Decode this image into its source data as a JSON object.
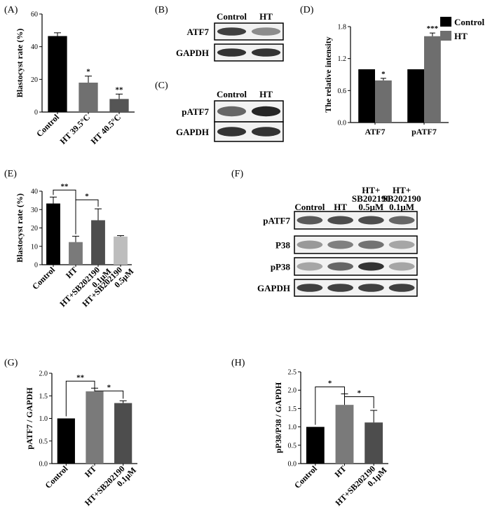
{
  "panel_labels": {
    "A": "(A)",
    "B": "(B)",
    "C": "(C)",
    "D": "(D)",
    "E": "(E)",
    "F": "(F)",
    "G": "(G)",
    "H": "(H)"
  },
  "chart_data": [
    {
      "id": "A",
      "type": "bar",
      "ylabel": "Blastocyst rate (%)",
      "ylim": [
        0,
        60
      ],
      "yticks": [
        0,
        20,
        40,
        60
      ],
      "categories": [
        "Control",
        "HT 39.5°C",
        "HT 40.5°C"
      ],
      "values": [
        46.5,
        18,
        8
      ],
      "errors": [
        2,
        4,
        3
      ],
      "colors": [
        "#000000",
        "#707070",
        "#555555"
      ],
      "annotations": [
        "",
        "*",
        "**"
      ],
      "rotate_labels": true
    },
    {
      "id": "D",
      "type": "bar",
      "ylabel": "The relative intensity",
      "ylim": [
        0,
        1.8
      ],
      "yticks": [
        "0.0",
        "0.6",
        "1.2",
        "1.8"
      ],
      "categories": [
        "ATF7",
        "pATF7"
      ],
      "series": [
        {
          "name": "Control",
          "values": [
            1.0,
            1.0
          ],
          "errors": [
            0,
            0
          ],
          "color": "#000000",
          "annotations": [
            "",
            ""
          ]
        },
        {
          "name": "HT",
          "values": [
            0.79,
            1.62
          ],
          "errors": [
            0.04,
            0.06
          ],
          "color": "#6e6e6e",
          "annotations": [
            "*",
            "***"
          ]
        }
      ],
      "legend": "top-right"
    },
    {
      "id": "E",
      "type": "bar",
      "ylabel": "Blastocyst rate (%)",
      "ylim": [
        0,
        40
      ],
      "yticks": [
        0,
        10,
        20,
        30,
        40
      ],
      "categories": [
        "Control",
        "HT",
        "HT+SB202190 0.1μM",
        "HT+SB202190 0.5μM"
      ],
      "category_lines": [
        [
          "Control"
        ],
        [
          "HT"
        ],
        [
          "HT+SB202190",
          "0.1μM"
        ],
        [
          "HT+SB202190",
          "0.5μM"
        ]
      ],
      "values": [
        33.3,
        12.3,
        24.2,
        15.3
      ],
      "errors": [
        3.5,
        3.2,
        6.2,
        0.5
      ],
      "colors": [
        "#000000",
        "#7a7a7a",
        "#4d4d4d",
        "#bdbdbd"
      ],
      "brackets": [
        {
          "from": 0,
          "to": 1,
          "label": "**"
        },
        {
          "from": 1,
          "to": 2,
          "label": "*"
        }
      ],
      "rotate_labels": true
    },
    {
      "id": "G",
      "type": "bar",
      "ylabel": "pATF7 / GAPDH",
      "ylim": [
        0,
        2.0
      ],
      "yticks": [
        "0.0",
        "0.5",
        "1.0",
        "1.5",
        "2.0"
      ],
      "categories": [
        "Control",
        "HT",
        "HT+SB202190 0.1μM"
      ],
      "category_lines": [
        [
          "Control"
        ],
        [
          "HT"
        ],
        [
          "HT+SB202190",
          "0.1μM"
        ]
      ],
      "values": [
        1.0,
        1.6,
        1.34
      ],
      "errors": [
        0,
        0.07,
        0.05
      ],
      "colors": [
        "#000000",
        "#7a7a7a",
        "#4d4d4d"
      ],
      "brackets": [
        {
          "from": 0,
          "to": 1,
          "label": "**"
        },
        {
          "from": 1,
          "to": 2,
          "label": "*"
        }
      ],
      "rotate_labels": true
    },
    {
      "id": "H",
      "type": "bar",
      "ylabel": "pP38/P38 / GAPDH",
      "ylim": [
        0,
        2.5
      ],
      "yticks": [
        "0.0",
        "0.5",
        "1.0",
        "1.5",
        "2.0",
        "2.5"
      ],
      "categories": [
        "Control",
        "HT",
        "HT+SB202190 0.1μM"
      ],
      "category_lines": [
        [
          "Control"
        ],
        [
          "HT"
        ],
        [
          "HT+SB202190",
          "0.1μM"
        ]
      ],
      "values": [
        1.0,
        1.6,
        1.12
      ],
      "errors": [
        0,
        0.3,
        0.33
      ],
      "colors": [
        "#000000",
        "#7a7a7a",
        "#4d4d4d"
      ],
      "brackets": [
        {
          "from": 0,
          "to": 1,
          "label": "*"
        },
        {
          "from": 1,
          "to": 2,
          "label": "*"
        }
      ],
      "rotate_labels": true
    }
  ],
  "blots": {
    "B": {
      "columns": [
        "Control",
        "HT"
      ],
      "rows": [
        "ATF7",
        "GAPDH"
      ],
      "intensity": [
        [
          0.75,
          0.45
        ],
        [
          0.8,
          0.8
        ]
      ]
    },
    "C": {
      "columns": [
        "Control",
        "HT"
      ],
      "rows": [
        "pATF7",
        "GAPDH"
      ],
      "intensity": [
        [
          0.6,
          0.85
        ],
        [
          0.8,
          0.8
        ]
      ]
    },
    "F": {
      "columns": [
        [
          "Control"
        ],
        [
          "HT"
        ],
        [
          "HT+",
          "SB202190",
          "0.5μM"
        ],
        [
          "HT+",
          "SB202190",
          "0.1μM"
        ]
      ],
      "rows": [
        "pATF7",
        "P38",
        "pP38",
        "GAPDH"
      ],
      "intensity": [
        [
          0.65,
          0.7,
          0.7,
          0.6
        ],
        [
          0.4,
          0.5,
          0.55,
          0.35
        ],
        [
          0.35,
          0.6,
          0.8,
          0.35
        ],
        [
          0.75,
          0.75,
          0.75,
          0.75
        ]
      ]
    }
  }
}
